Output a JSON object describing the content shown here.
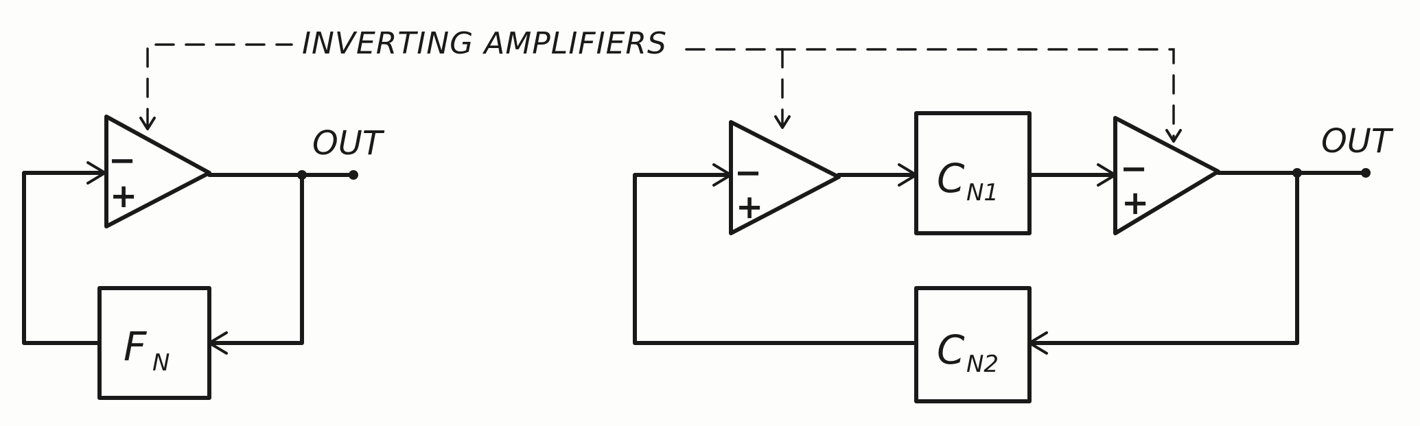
{
  "title": "INVERTING AMPLIFIERS",
  "left_circuit": {
    "output_label": "OUT",
    "feedback_block": {
      "main": "F",
      "sub": "N"
    },
    "amp_minus": "−",
    "amp_plus": "+"
  },
  "right_circuit": {
    "output_label": "OUT",
    "block_1": {
      "main": "C",
      "sub": "N1"
    },
    "block_2": {
      "main": "C",
      "sub": "N2"
    },
    "amp1_minus": "−",
    "amp1_plus": "+",
    "amp2_minus": "−",
    "amp2_plus": "+"
  },
  "colors": {
    "ink": "#1a1a1a",
    "paper": "#fdfdfb"
  }
}
